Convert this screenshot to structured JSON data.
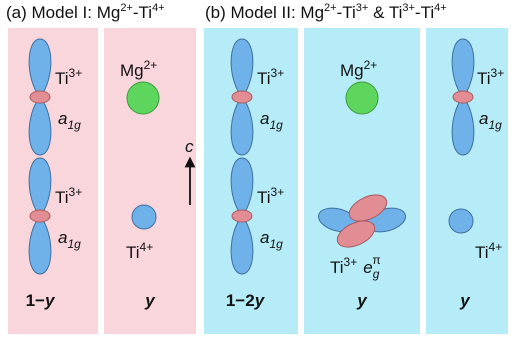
{
  "panels": [
    {
      "title": [
        {
          "text": "(a) Model I: Mg"
        },
        {
          "sup": "2+"
        },
        {
          "text": "-Ti"
        },
        {
          "sup": "4+"
        }
      ],
      "columns": [
        {
          "labels": [
            [
              {
                "text": "Ti"
              },
              {
                "sup": "3+"
              }
            ],
            [
              {
                "italic": "a"
              },
              {
                "sub": "1g"
              }
            ],
            [
              {
                "text": "Ti"
              },
              {
                "sup": "3+"
              }
            ],
            [
              {
                "italic": "a"
              },
              {
                "sub": "1g"
              }
            ]
          ],
          "fraction": [
            {
              "text": "1−"
            },
            {
              "italic": "y"
            }
          ]
        },
        {
          "labels": [
            [
              {
                "text": "Mg"
              },
              {
                "sup": "2+"
              }
            ],
            [
              {
                "text": "Ti"
              },
              {
                "sup": "4+"
              }
            ]
          ],
          "fraction": [
            {
              "italic": "y"
            }
          ]
        }
      ]
    },
    {
      "title": [
        {
          "text": "(b) Model II: Mg"
        },
        {
          "sup": "2+"
        },
        {
          "text": "-Ti"
        },
        {
          "sup": "3+"
        },
        {
          "text": " & Ti"
        },
        {
          "sup": "3+"
        },
        {
          "text": "-Ti"
        },
        {
          "sup": "4+"
        }
      ],
      "columns": [
        {
          "labels": [
            [
              {
                "text": "Ti"
              },
              {
                "sup": "3+"
              }
            ],
            [
              {
                "italic": "a"
              },
              {
                "sub": "1g"
              }
            ],
            [
              {
                "text": "Ti"
              },
              {
                "sup": "3+"
              }
            ],
            [
              {
                "italic": "a"
              },
              {
                "sub": "1g"
              }
            ]
          ],
          "fraction": [
            {
              "text": "1−2"
            },
            {
              "italic": "y"
            }
          ]
        },
        {
          "labels": [
            [
              {
                "text": "Mg"
              },
              {
                "sup": "2+"
              }
            ],
            [
              {
                "text": "Ti"
              },
              {
                "sup": "3+"
              },
              {
                "italic": "e"
              },
              {
                "sub": "g"
              },
              {
                "sup": "π"
              }
            ]
          ],
          "fraction": [
            {
              "italic": "y"
            }
          ]
        },
        {
          "labels": [
            [
              {
                "text": "Ti"
              },
              {
                "sup": "3+"
              }
            ],
            [
              {
                "italic": "a"
              },
              {
                "sub": "1g"
              }
            ],
            [
              {
                "text": "Ti"
              },
              {
                "sup": "4+"
              }
            ]
          ],
          "fraction": [
            {
              "italic": "y"
            }
          ]
        }
      ]
    }
  ],
  "axis_label": "c"
}
